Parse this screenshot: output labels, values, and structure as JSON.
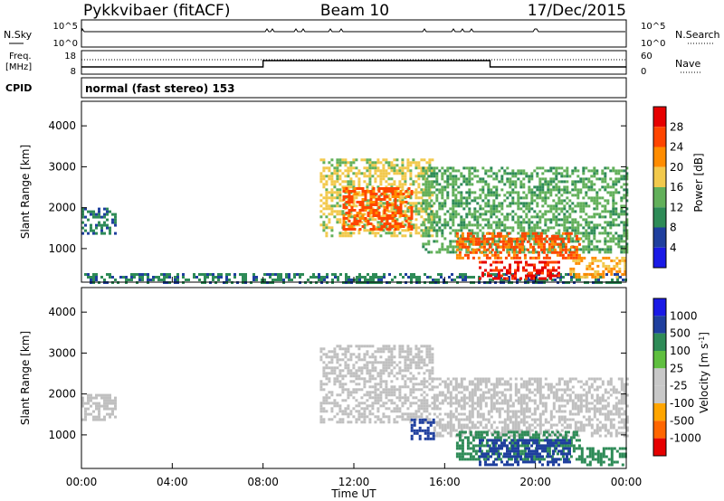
{
  "header": {
    "station": "Pykkvibaer (fitACF)",
    "beam": "Beam 10",
    "date": "17/Dec/2015"
  },
  "status_panel": {
    "nsky_label": "N.Sky",
    "nsky_ticks": [
      "10^5",
      "10^0"
    ],
    "nsearch_label": "N.Search",
    "nsearch_ticks": [
      "10^5",
      "10^0"
    ],
    "freq_label_1": "Freq.",
    "freq_label_2": "[MHz]",
    "freq_ticks": [
      "18",
      "8"
    ],
    "nave_label": "Nave",
    "nave_ticks": [
      "60",
      "0"
    ],
    "cpid_label": "CPID",
    "cpid_text": "normal (fast stereo) 153"
  },
  "colors": {
    "power": [
      "#1a1ae6",
      "#1f3f9e",
      "#2e8b57",
      "#62b05a",
      "#f2c94c",
      "#ff8c00",
      "#ff4500",
      "#e60000"
    ],
    "velocity": [
      "#e60000",
      "#ff6600",
      "#ffa500",
      "#c8c8c8",
      "#c8c8c8",
      "#5fbf3f",
      "#2e8b57",
      "#1f3f9e",
      "#1a1ae6"
    ],
    "ground": "#c0c0c0"
  },
  "chart_data": [
    {
      "type": "heatmap",
      "title": "Power",
      "xlabel": "Time UT",
      "ylabel": "Slant Range [km]",
      "xlim": [
        "00:00",
        "24:00"
      ],
      "x_ticks": [
        "00:00",
        "04:00",
        "08:00",
        "12:00",
        "16:00",
        "20:00",
        "00:00"
      ],
      "ylim": [
        180,
        4600
      ],
      "y_ticks": [
        "1000",
        "2000",
        "3000",
        "4000"
      ],
      "colorbar": {
        "label": "Power [dB]",
        "range": [
          0,
          32
        ],
        "ticks": [
          "4",
          "8",
          "12",
          "16",
          "20",
          "24",
          "28"
        ]
      },
      "regions": [
        {
          "t_start": "00:00",
          "t_end": "01:30",
          "r_start": 1350,
          "r_end": 2000,
          "value_db": 8
        },
        {
          "t_start": "00:00",
          "t_end": "24:00",
          "r_start": 200,
          "r_end": 400,
          "value_db": 10
        },
        {
          "t_start": "10:30",
          "t_end": "15:30",
          "r_start": 1300,
          "r_end": 3200,
          "value_db": 16
        },
        {
          "t_start": "11:30",
          "t_end": "14:30",
          "r_start": 1500,
          "r_end": 2500,
          "value_db": 26
        },
        {
          "t_start": "15:00",
          "t_end": "24:00",
          "r_start": 900,
          "r_end": 3000,
          "value_db": 12
        },
        {
          "t_start": "16:30",
          "t_end": "22:00",
          "r_start": 800,
          "r_end": 1400,
          "value_db": 24
        },
        {
          "t_start": "17:30",
          "t_end": "21:00",
          "r_start": 300,
          "r_end": 700,
          "value_db": 28
        },
        {
          "t_start": "21:30",
          "t_end": "24:00",
          "r_start": 300,
          "r_end": 800,
          "value_db": 20
        }
      ]
    },
    {
      "type": "heatmap",
      "title": "Velocity",
      "xlabel": "Time UT",
      "ylabel": "Slant Range [km]",
      "xlim": [
        "00:00",
        "24:00"
      ],
      "x_ticks": [
        "00:00",
        "04:00",
        "08:00",
        "12:00",
        "16:00",
        "20:00",
        "00:00"
      ],
      "ylim": [
        180,
        4600
      ],
      "y_ticks": [
        "1000",
        "2000",
        "3000",
        "4000"
      ],
      "colorbar": {
        "label": "Velocity [m s-1]",
        "ticks": [
          "1000",
          "500",
          "100",
          "25",
          "-25",
          "-100",
          "-500",
          "-1000"
        ]
      },
      "regions": [
        {
          "t_start": "00:00",
          "t_end": "01:30",
          "r_start": 1350,
          "r_end": 2000,
          "value_ms": 0,
          "ground_scatter": true
        },
        {
          "t_start": "10:30",
          "t_end": "15:30",
          "r_start": 1300,
          "r_end": 3200,
          "value_ms": 0,
          "ground_scatter": true
        },
        {
          "t_start": "15:30",
          "t_end": "24:00",
          "r_start": 1000,
          "r_end": 2400,
          "value_ms": 0,
          "ground_scatter": true
        },
        {
          "t_start": "16:30",
          "t_end": "22:00",
          "r_start": 400,
          "r_end": 1100,
          "value_ms": 200
        },
        {
          "t_start": "17:30",
          "t_end": "21:30",
          "r_start": 300,
          "r_end": 900,
          "value_ms": 600
        },
        {
          "t_start": "14:30",
          "t_end": "15:30",
          "r_start": 900,
          "r_end": 1400,
          "value_ms": 900
        },
        {
          "t_start": "22:00",
          "t_end": "24:00",
          "r_start": 300,
          "r_end": 700,
          "value_ms": 150
        }
      ]
    }
  ]
}
